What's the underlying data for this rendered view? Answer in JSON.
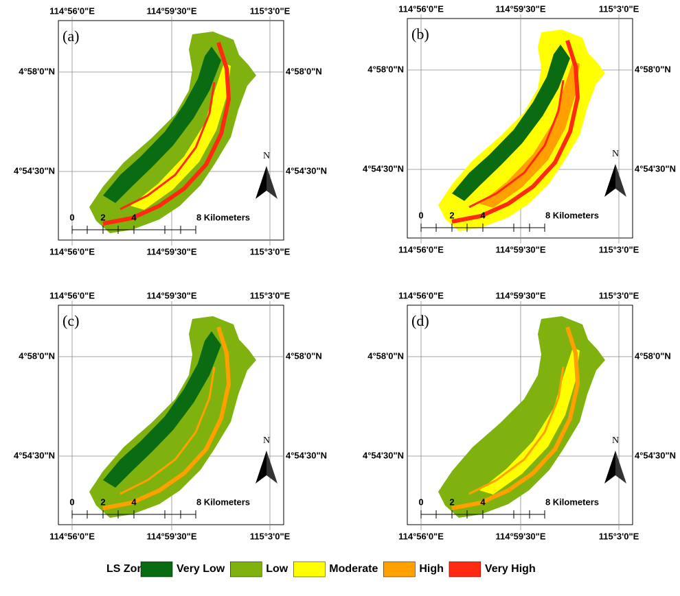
{
  "panels": [
    {
      "label": "(a)"
    },
    {
      "label": "(b)"
    },
    {
      "label": "(c)"
    },
    {
      "label": "(d)"
    }
  ],
  "longitude_labels": [
    "114°56'0\"E",
    "114°59'30\"E",
    "115°3'0\"E"
  ],
  "latitude_labels": [
    "4°58'0\"N",
    "4°54'30\"N"
  ],
  "scale_labels": [
    "0",
    "2",
    "4",
    "8 Kilometers"
  ],
  "north_label": "N",
  "legend": {
    "title": "LS Zone",
    "items": [
      {
        "name": "Very Low",
        "color": "#0b6b12"
      },
      {
        "name": "Low",
        "color": "#7fb20f"
      },
      {
        "name": "Moderate",
        "color": "#ffff00"
      },
      {
        "name": "High",
        "color": "#ffa000"
      },
      {
        "name": "Very High",
        "color": "#ff2a10"
      }
    ]
  }
}
